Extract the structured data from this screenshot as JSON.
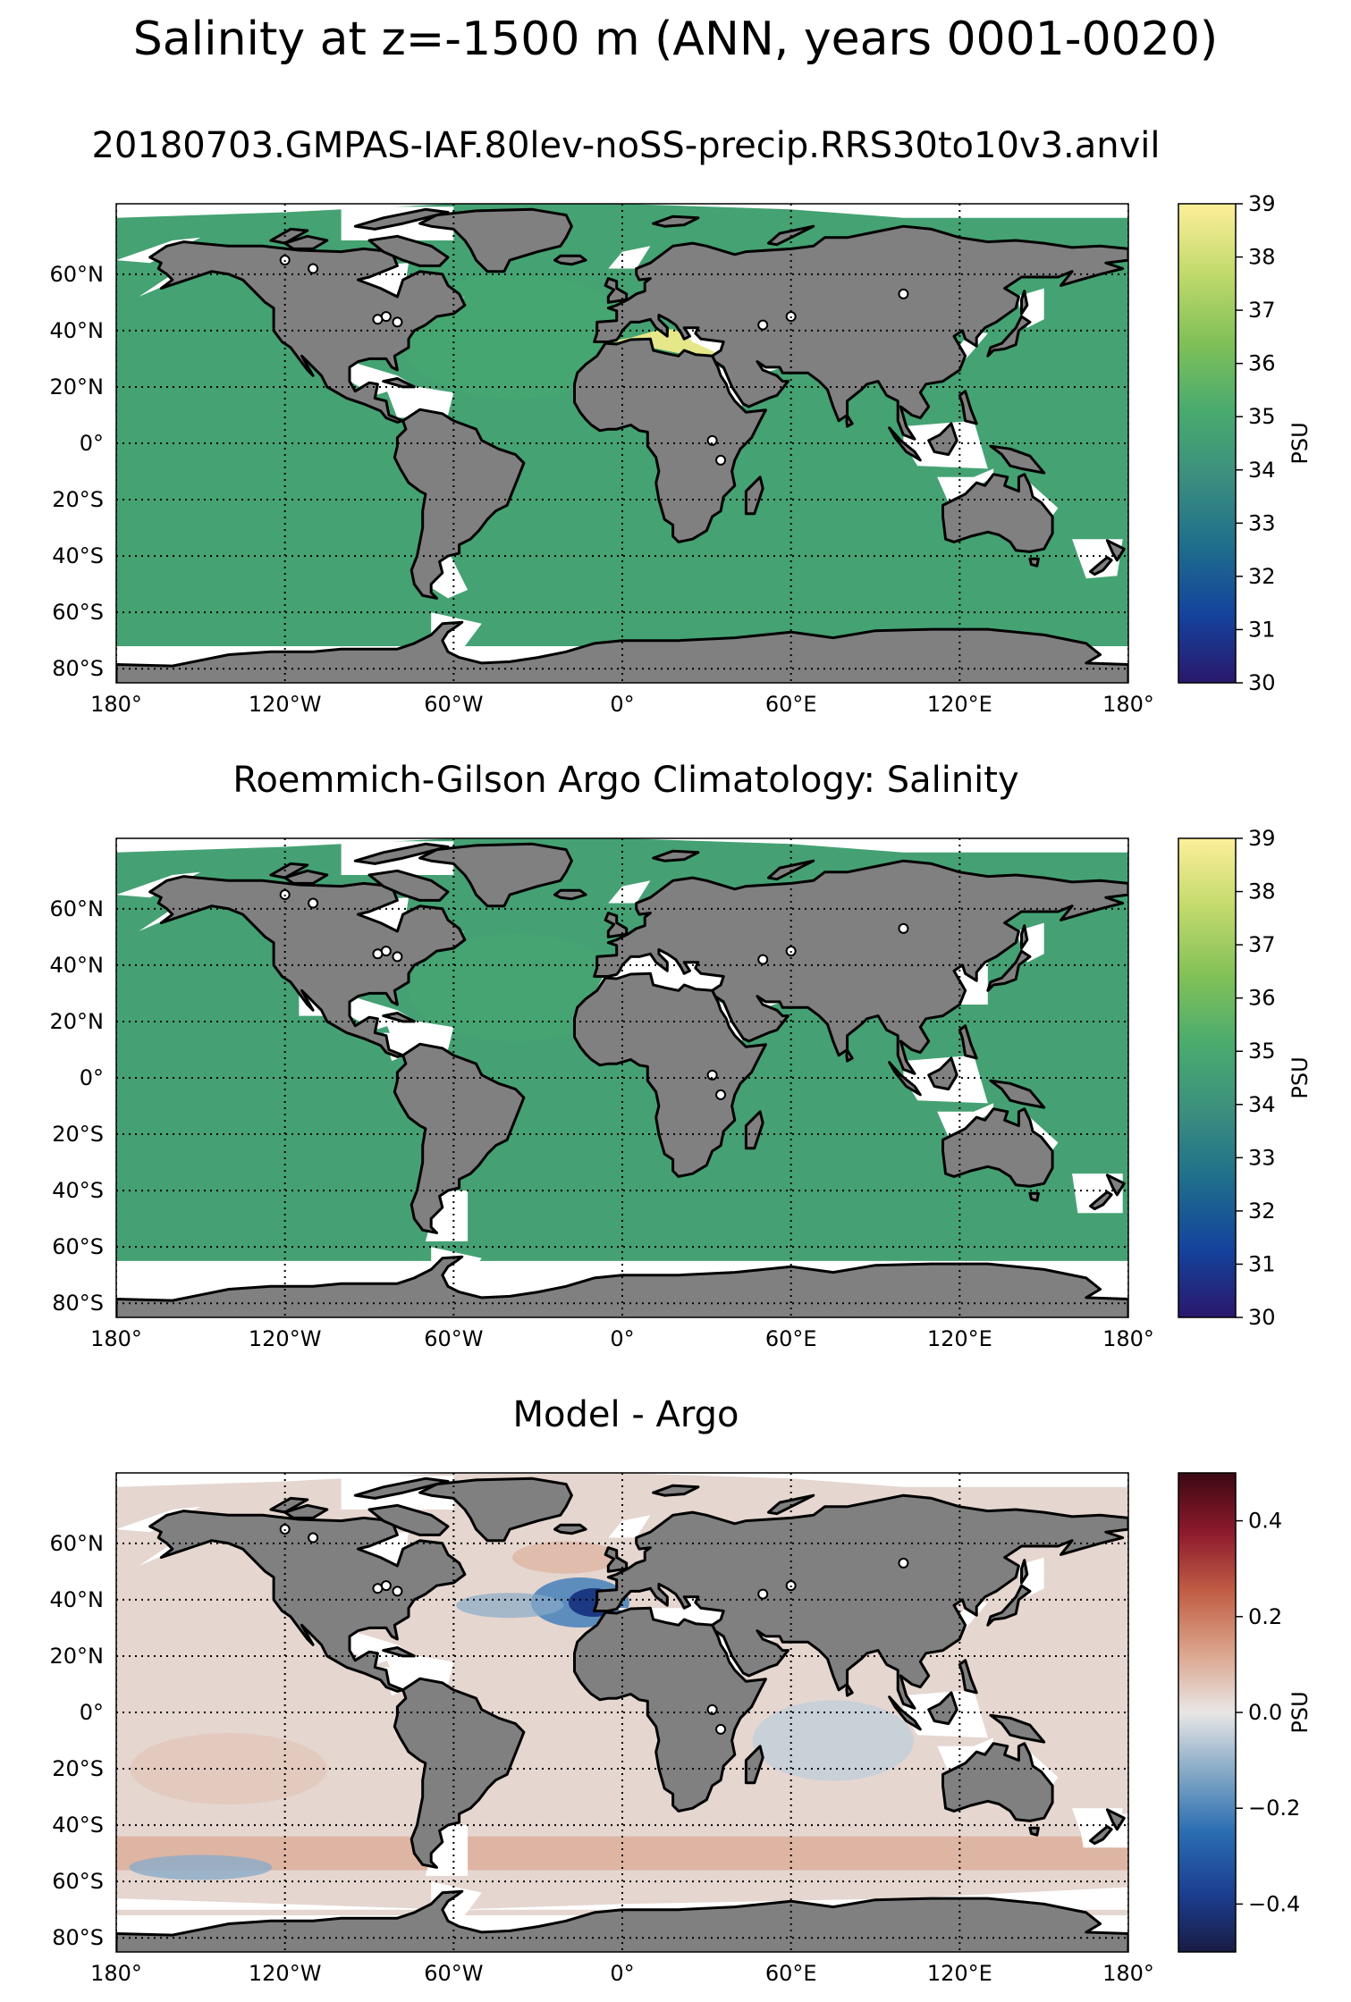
{
  "figure": {
    "suptitle": "Salinity at z=-1500 m (ANN, years 0001-0020)"
  },
  "chart_data": [
    {
      "type": "heatmap",
      "title": "20180703.GMPAS-IAF.80lev-noSS-precip.RRS30to10v3.anvil",
      "xlim": [
        -180,
        180
      ],
      "ylim": [
        -85,
        85
      ],
      "x_ticks": [
        -180,
        -120,
        -60,
        0,
        60,
        120,
        180
      ],
      "x_tick_labels": [
        "180°",
        "120°W",
        "60°W",
        "0°",
        "60°E",
        "120°E",
        "180°"
      ],
      "y_ticks": [
        60,
        40,
        20,
        0,
        -20,
        -40,
        -60,
        -80
      ],
      "y_tick_labels": [
        "60°N",
        "40°N",
        "20°N",
        "0°",
        "20°S",
        "40°S",
        "60°S",
        "80°S"
      ],
      "grid": true,
      "field_value": 34.75,
      "regional_values": [
        {
          "region": "Mediterranean Sea",
          "value": 38.5
        },
        {
          "region": "North Atlantic",
          "value": 35.0
        }
      ],
      "colorbar": {
        "label": "PSU",
        "range": [
          30,
          39
        ],
        "ticks": [
          30,
          31,
          32,
          33,
          34,
          35,
          36,
          37,
          38,
          39
        ],
        "colormap": "haline",
        "colors": [
          "#2a186c",
          "#14439c",
          "#1f6e8c",
          "#3b8f7e",
          "#4aab6e",
          "#82c158",
          "#c2da6c",
          "#fdef9a"
        ]
      }
    },
    {
      "type": "heatmap",
      "title": "Roemmich-Gilson Argo Climatology: Salinity",
      "xlim": [
        -180,
        180
      ],
      "ylim": [
        -85,
        85
      ],
      "x_ticks": [
        -180,
        -120,
        -60,
        0,
        60,
        120,
        180
      ],
      "x_tick_labels": [
        "180°",
        "120°W",
        "60°W",
        "0°",
        "60°E",
        "120°E",
        "180°"
      ],
      "y_ticks": [
        60,
        40,
        20,
        0,
        -20,
        -40,
        -60,
        -80
      ],
      "y_tick_labels": [
        "60°N",
        "40°N",
        "20°N",
        "0°",
        "20°S",
        "40°S",
        "60°S",
        "80°S"
      ],
      "grid": true,
      "field_value": 34.7,
      "data_latitude_range": [
        -65,
        65
      ],
      "colorbar": {
        "label": "PSU",
        "range": [
          30,
          39
        ],
        "ticks": [
          30,
          31,
          32,
          33,
          34,
          35,
          36,
          37,
          38,
          39
        ],
        "colormap": "haline",
        "colors": [
          "#2a186c",
          "#14439c",
          "#1f6e8c",
          "#3b8f7e",
          "#4aab6e",
          "#82c158",
          "#c2da6c",
          "#fdef9a"
        ]
      }
    },
    {
      "type": "heatmap",
      "title": "Model - Argo",
      "xlim": [
        -180,
        180
      ],
      "ylim": [
        -85,
        85
      ],
      "x_ticks": [
        -180,
        -120,
        -60,
        0,
        60,
        120,
        180
      ],
      "x_tick_labels": [
        "180°",
        "120°W",
        "60°W",
        "0°",
        "60°E",
        "120°E",
        "180°"
      ],
      "y_ticks": [
        60,
        40,
        20,
        0,
        -20,
        -40,
        -60,
        -80
      ],
      "y_tick_labels": [
        "60°N",
        "40°N",
        "20°N",
        "0°",
        "20°S",
        "40°S",
        "60°S",
        "80°S"
      ],
      "grid": true,
      "field_value": 0.03,
      "data_latitude_range": [
        -65,
        65
      ],
      "regional_values": [
        {
          "region": "Off Iberia (Mediterranean outflow)",
          "value": -0.4
        },
        {
          "region": "Southern Ocean 45-55°S",
          "value": 0.12
        },
        {
          "region": "Indian Ocean 0-20°S",
          "value": -0.05
        }
      ],
      "colorbar": {
        "label": "PSU",
        "range": [
          -0.5,
          0.5
        ],
        "ticks": [
          -0.4,
          -0.2,
          0.0,
          0.2,
          0.4
        ],
        "tick_labels": [
          "−0.4",
          "−0.2",
          "0.0",
          "0.2",
          "0.4"
        ],
        "colormap": "balance",
        "colors": [
          "#181c43",
          "#1c3f93",
          "#2a6db1",
          "#85a9c6",
          "#e8e6e5",
          "#dba48c",
          "#c15f46",
          "#8e1a2d",
          "#3c0912"
        ]
      }
    }
  ],
  "colors": {
    "land": "#808080",
    "no_data": "#ffffff",
    "coast": "#000000"
  }
}
